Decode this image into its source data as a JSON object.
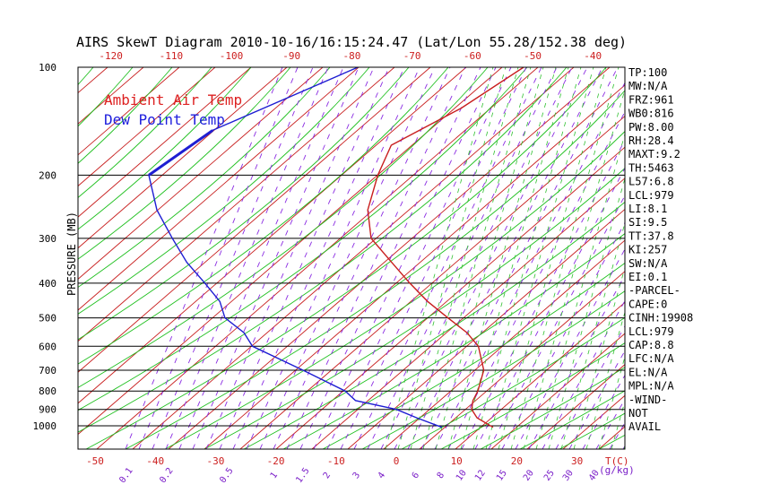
{
  "chart_data": {
    "type": "line",
    "title": "AIRS SkewT Diagram 2010-10-16/16:15:24.47 (Lat/Lon 55.28/152.38 deg)",
    "ylabel": "PRESSURE (MB)",
    "xlabel_bottom": "T(C)",
    "mixing_ratio_label": "(g/kg)",
    "pressure_ticks": [
      100,
      200,
      300,
      400,
      500,
      600,
      700,
      800,
      900,
      1000
    ],
    "top_temp_ticks": [
      -120,
      -110,
      -100,
      -90,
      -80,
      -70,
      -60,
      -50,
      -40
    ],
    "bottom_temp_ticks": [
      -50,
      -40,
      -30,
      -20,
      -10,
      0,
      10,
      20,
      30
    ],
    "mixing_ratio_ticks": [
      "0.1",
      "0.2",
      "0.5",
      "1",
      "1.5",
      "2",
      "3",
      "4",
      "6",
      "8",
      "10",
      "12",
      "15",
      "20",
      "25",
      "30",
      "40"
    ],
    "legend": [
      {
        "name": "Ambient Air Temp",
        "color": "#dd2020"
      },
      {
        "name": "Dew Point Temp",
        "color": "#2020dd"
      }
    ],
    "series": [
      {
        "name": "Ambient Air Temp",
        "color": "#c81e1e",
        "points": [
          [
            100,
            -51.5
          ],
          [
            130,
            -54
          ],
          [
            165,
            -58.5
          ],
          [
            200,
            -55
          ],
          [
            250,
            -50
          ],
          [
            300,
            -44
          ],
          [
            350,
            -36
          ],
          [
            400,
            -29
          ],
          [
            450,
            -22.5
          ],
          [
            500,
            -16
          ],
          [
            550,
            -10
          ],
          [
            600,
            -5.5
          ],
          [
            700,
            0
          ],
          [
            800,
            3
          ],
          [
            850,
            4
          ],
          [
            900,
            5.5
          ],
          [
            950,
            8
          ],
          [
            1010,
            12.5
          ]
        ]
      },
      {
        "name": "Dew Point Temp",
        "color": "#1e1ed2",
        "points": [
          [
            100,
            -79
          ],
          [
            150,
            -91
          ],
          [
            200,
            -93
          ],
          [
            250,
            -85
          ],
          [
            300,
            -77
          ],
          [
            350,
            -70
          ],
          [
            400,
            -63
          ],
          [
            450,
            -57
          ],
          [
            500,
            -53
          ],
          [
            550,
            -47
          ],
          [
            600,
            -43
          ],
          [
            700,
            -30
          ],
          [
            800,
            -19
          ],
          [
            850,
            -15.5
          ],
          [
            900,
            -7
          ],
          [
            950,
            -2
          ],
          [
            1010,
            4
          ]
        ]
      }
    ],
    "indices": [
      "TP:100",
      "MW:N/A",
      "FRZ:961",
      "WB0:816",
      "PW:8.00",
      "RH:28.4",
      "MAXT:9.2",
      "TH:5463",
      "L57:6.8",
      "LCL:979",
      "LI:8.1",
      "SI:9.5",
      "TT:37.8",
      "KI:257",
      "SW:N/A",
      "EI:0.1",
      "-PARCEL-",
      "CAPE:0",
      "CINH:19908",
      "LCL:979",
      "CAP:8.8",
      "LFC:N/A",
      "EL:N/A",
      "MPL:N/A",
      "-WIND-",
      "NOT",
      "AVAIL"
    ],
    "colors": {
      "dry_adiabat": "#c81e1e",
      "moist_adiabat": "#20c020",
      "mixing_ratio": "#8a2be2",
      "wet": "#30c030",
      "axis_text_red": "#cc1e1e",
      "axis_text_purple": "#7a1ec8",
      "frame": "#000000"
    }
  }
}
